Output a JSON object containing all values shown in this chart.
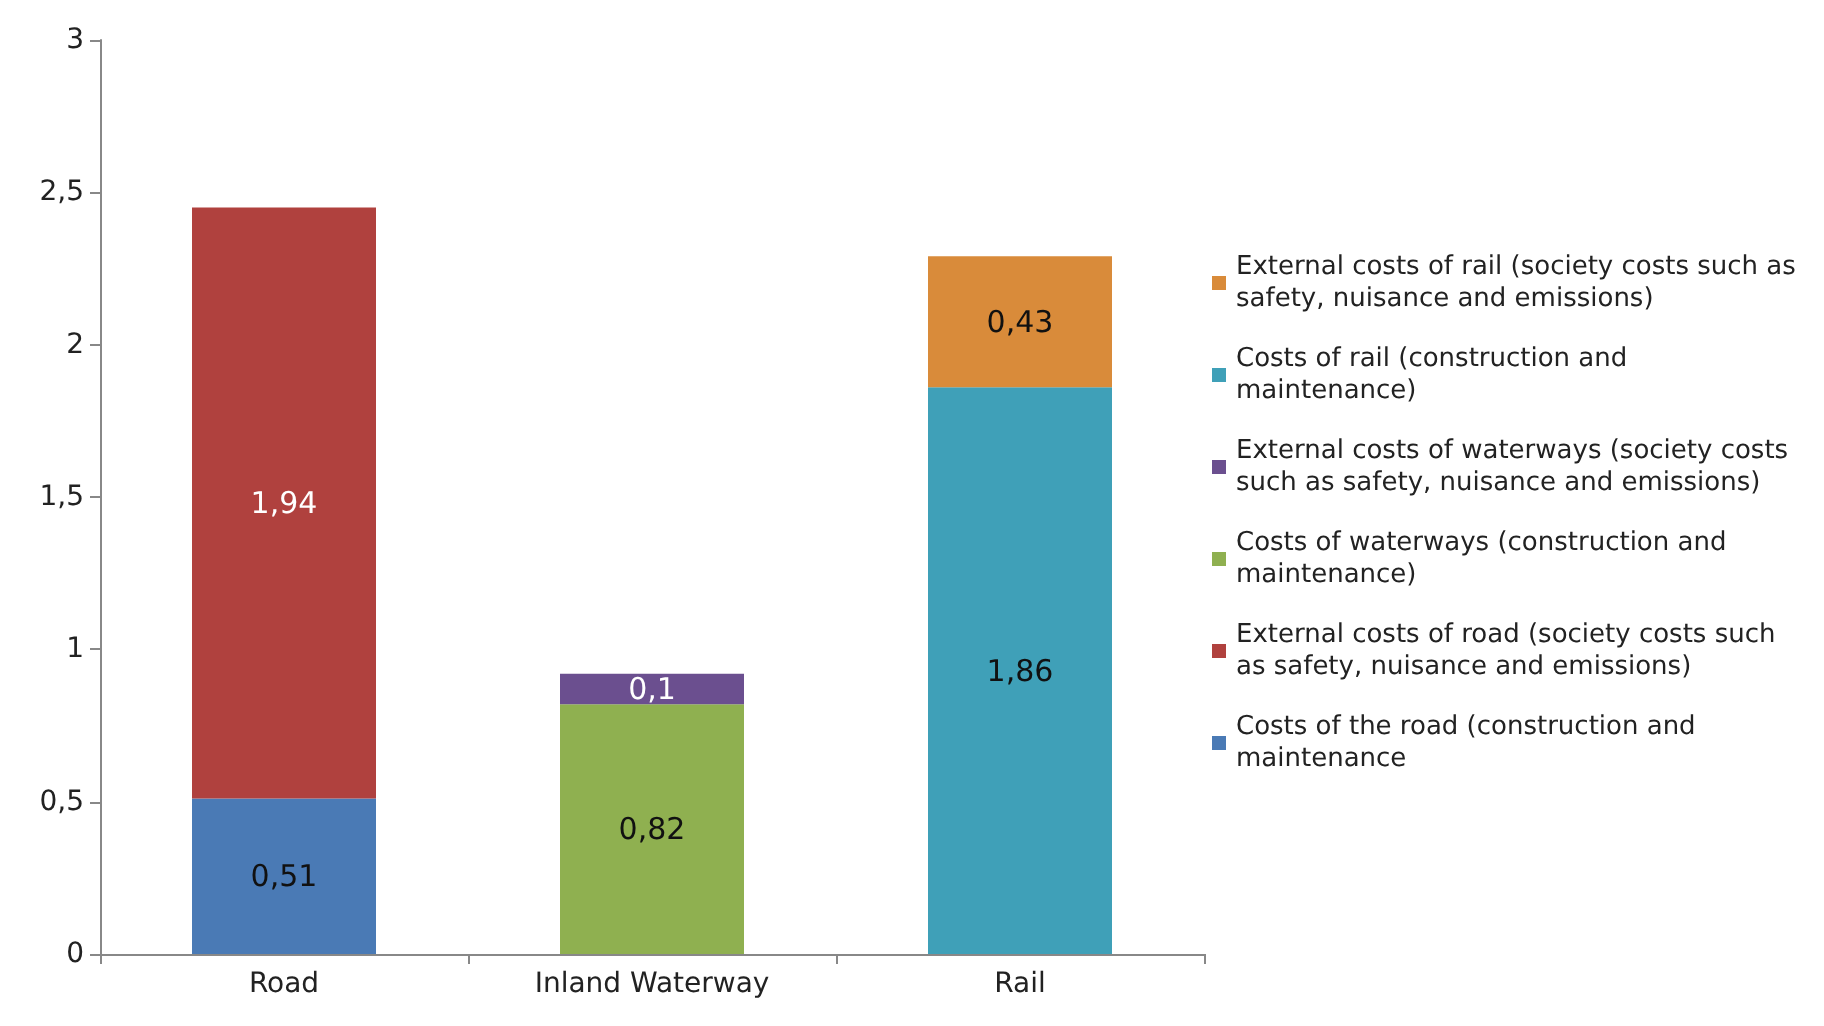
{
  "chart_data": {
    "type": "bar",
    "stacked": true,
    "categories": [
      "Road",
      "Inland Waterway",
      "Rail"
    ],
    "series": [
      {
        "name": "Costs of the road (construction and maintenance",
        "color": "#4a7ab5",
        "values": [
          0.51,
          null,
          null
        ],
        "value_labels": [
          "0,51",
          null,
          null
        ]
      },
      {
        "name": "External costs of road (society costs such as safety, nuisance and emissions)",
        "color": "#b0413e",
        "values": [
          1.94,
          null,
          null
        ],
        "value_labels": [
          "1,94",
          null,
          null
        ]
      },
      {
        "name": "Costs of waterways (construction and maintenance)",
        "color": "#8fb050",
        "values": [
          null,
          0.82,
          null
        ],
        "value_labels": [
          null,
          "0,82",
          null
        ]
      },
      {
        "name": "External costs of waterways (society costs such as safety, nuisance and emissions)",
        "color": "#6b4f8f",
        "values": [
          null,
          0.1,
          null
        ],
        "value_labels": [
          null,
          "0,1",
          null
        ]
      },
      {
        "name": "Costs of rail (construction and maintenance)",
        "color": "#3fa0b8",
        "values": [
          null,
          null,
          1.86
        ],
        "value_labels": [
          null,
          null,
          "1,86"
        ]
      },
      {
        "name": "External costs of rail (society costs such as safety, nuisance and emissions)",
        "color": "#d98b3a",
        "values": [
          null,
          null,
          0.43
        ],
        "value_labels": [
          null,
          null,
          "0,43"
        ]
      }
    ],
    "ylim": [
      0,
      3
    ],
    "yticks": [
      0,
      {
        "value": 0.5,
        "label": "0,5"
      },
      1,
      {
        "value": 1.5,
        "label": "1,5"
      },
      2,
      {
        "value": 2.5,
        "label": "2,5"
      },
      3
    ],
    "legend": "right"
  }
}
